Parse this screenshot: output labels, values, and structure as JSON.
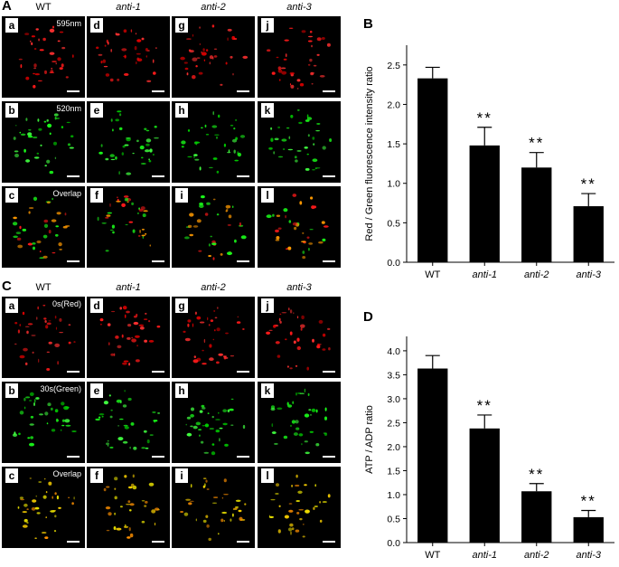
{
  "panel_A": {
    "letter": "A",
    "columns": [
      "WT",
      "anti-1",
      "anti-2",
      "anti-3"
    ],
    "rows": [
      {
        "letters": [
          "a",
          "d",
          "g",
          "j"
        ],
        "note": "595nm",
        "channel": "red"
      },
      {
        "letters": [
          "b",
          "e",
          "h",
          "k"
        ],
        "note": "520nm",
        "channel": "green"
      },
      {
        "letters": [
          "c",
          "f",
          "i",
          "l"
        ],
        "note": "Overlap",
        "channel": "overlap"
      }
    ]
  },
  "panel_C": {
    "letter": "C",
    "columns": [
      "WT",
      "anti-1",
      "anti-2",
      "anti-3"
    ],
    "rows": [
      {
        "letters": [
          "a",
          "d",
          "g",
          "j"
        ],
        "note": "0s(Red)",
        "channel": "red"
      },
      {
        "letters": [
          "b",
          "e",
          "h",
          "k"
        ],
        "note": "30s(Green)",
        "channel": "green"
      },
      {
        "letters": [
          "c",
          "f",
          "i",
          "l"
        ],
        "note": "Overlap",
        "channel": "yellow"
      }
    ]
  },
  "chart_data": [
    {
      "panel": "B",
      "type": "bar",
      "categories": [
        "WT",
        "anti-1",
        "anti-2",
        "anti-3"
      ],
      "values": [
        2.33,
        1.48,
        1.2,
        0.71
      ],
      "errors": [
        0.14,
        0.23,
        0.19,
        0.16
      ],
      "significance": [
        "",
        "**",
        "**",
        "**"
      ],
      "ylabel": "Red / Green fluorescence intensity ratio",
      "ylim": [
        0,
        2.75
      ],
      "yticks": [
        "0.0",
        "0.5",
        "1.0",
        "1.5",
        "2.0",
        "2.5"
      ],
      "bar_color": "#000000"
    },
    {
      "panel": "D",
      "type": "bar",
      "categories": [
        "WT",
        "anti-1",
        "anti-2",
        "anti-3"
      ],
      "values": [
        3.63,
        2.38,
        1.07,
        0.53
      ],
      "errors": [
        0.27,
        0.28,
        0.16,
        0.14
      ],
      "significance": [
        "",
        "**",
        "**",
        "**"
      ],
      "ylabel": "ATP / ADP ratio",
      "ylim": [
        0,
        4.3
      ],
      "yticks": [
        "0.0",
        "0.5",
        "1.0",
        "1.5",
        "2.0",
        "2.5",
        "3.0",
        "3.5",
        "4.0"
      ],
      "bar_color": "#000000"
    }
  ]
}
